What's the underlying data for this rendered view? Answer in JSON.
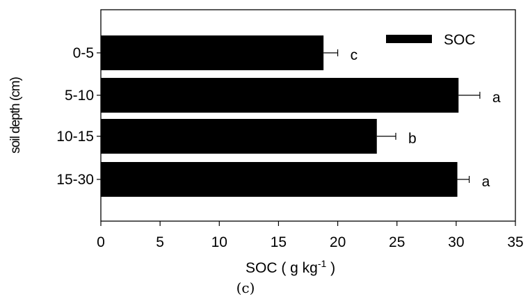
{
  "chart_data": {
    "type": "bar",
    "orientation": "horizontal",
    "title": "",
    "panel_label": "(c)",
    "xlabel": "SOC ( g kg",
    "xlabel_superscript": "-1",
    "xlabel_suffix": " )",
    "ylabel": "soil depth (cm)",
    "xlim": [
      0,
      35
    ],
    "xticks": [
      "0",
      "5",
      "10",
      "15",
      "20",
      "25",
      "30",
      "35"
    ],
    "categories": [
      "0-5",
      "5-10",
      "10-15",
      "15-30"
    ],
    "series": [
      {
        "name": "SOC",
        "color": "#000000",
        "values": [
          18.8,
          30.2,
          23.3,
          30.1
        ],
        "errors": [
          1.2,
          1.8,
          1.6,
          1.0
        ]
      }
    ],
    "significance_letters": [
      "c",
      "a",
      "b",
      "a"
    ],
    "legend": {
      "position": "top-right",
      "entries": [
        "SOC"
      ]
    },
    "grid": false
  }
}
